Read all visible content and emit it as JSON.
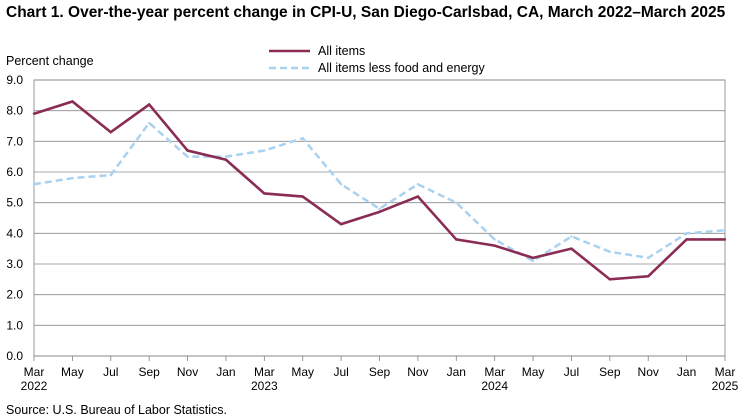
{
  "chart_data": {
    "type": "line",
    "title": "Chart 1. Over-the-year percent change in CPI-U, San Diego-Carlsbad, CA, March 2022–March 2025",
    "ylabel": "Percent change",
    "xlabel": "",
    "ylim": [
      0,
      9
    ],
    "yticks": [
      "0.0",
      "1.0",
      "2.0",
      "3.0",
      "4.0",
      "5.0",
      "6.0",
      "7.0",
      "8.0",
      "9.0"
    ],
    "grid": true,
    "legend_position": "top",
    "x_tick_labels": [
      {
        "month": "Mar",
        "year": "2022"
      },
      {
        "month": "May",
        "year": ""
      },
      {
        "month": "Jul",
        "year": ""
      },
      {
        "month": "Sep",
        "year": ""
      },
      {
        "month": "Nov",
        "year": ""
      },
      {
        "month": "Jan",
        "year": ""
      },
      {
        "month": "Mar",
        "year": "2023"
      },
      {
        "month": "May",
        "year": ""
      },
      {
        "month": "Jul",
        "year": ""
      },
      {
        "month": "Sep",
        "year": ""
      },
      {
        "month": "Nov",
        "year": ""
      },
      {
        "month": "Jan",
        "year": ""
      },
      {
        "month": "Mar",
        "year": "2024"
      },
      {
        "month": "May",
        "year": ""
      },
      {
        "month": "Jul",
        "year": ""
      },
      {
        "month": "Sep",
        "year": ""
      },
      {
        "month": "Nov",
        "year": ""
      },
      {
        "month": "Jan",
        "year": ""
      },
      {
        "month": "Mar",
        "year": "2025"
      }
    ],
    "series": [
      {
        "name": "All items",
        "color": "#8b2c55",
        "dash": "solid",
        "values": [
          7.9,
          8.3,
          7.3,
          8.2,
          6.7,
          6.4,
          5.3,
          5.2,
          4.3,
          4.7,
          5.2,
          3.8,
          3.6,
          3.2,
          3.5,
          2.5,
          2.6,
          3.8,
          3.8
        ]
      },
      {
        "name": "All items less food and energy",
        "color": "#a9d2f0",
        "dash": "dashed",
        "values": [
          5.6,
          5.8,
          5.9,
          7.6,
          6.5,
          6.5,
          6.7,
          7.1,
          5.6,
          4.8,
          5.6,
          5.0,
          3.8,
          3.1,
          3.9,
          3.4,
          3.2,
          4.0,
          4.1
        ]
      }
    ]
  },
  "source": "Source: U.S. Bureau of Labor Statistics."
}
